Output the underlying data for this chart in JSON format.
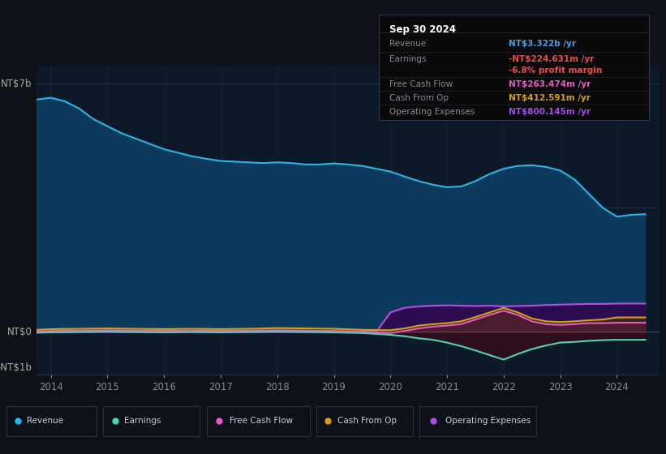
{
  "bg_color": "#0e1117",
  "plot_bg_color": "#0c1929",
  "title_box": {
    "date": "Sep 30 2024",
    "rows": [
      {
        "label": "Revenue",
        "value": "NT$3.322b /yr",
        "value_color": "#4f9de8"
      },
      {
        "label": "Earnings",
        "value": "-NT$224.631m /yr",
        "value_color": "#e84f4f"
      },
      {
        "label": "",
        "value": "-6.8% profit margin",
        "value_color": "#e84f4f"
      },
      {
        "label": "Free Cash Flow",
        "value": "NT$263.474m /yr",
        "value_color": "#e060c0"
      },
      {
        "label": "Cash From Op",
        "value": "NT$412.591m /yr",
        "value_color": "#d4a017"
      },
      {
        "label": "Operating Expenses",
        "value": "NT$800.145m /yr",
        "value_color": "#a04fe8"
      }
    ]
  },
  "ylabel_top": "NT$7b",
  "ylabel_zero": "NT$0",
  "ylabel_neg": "-NT$1b",
  "xticklabels": [
    "2014",
    "2015",
    "2016",
    "2017",
    "2018",
    "2019",
    "2020",
    "2021",
    "2022",
    "2023",
    "2024"
  ],
  "legend": [
    {
      "label": "Revenue",
      "color": "#29b5e8"
    },
    {
      "label": "Earnings",
      "color": "#4fd4b0"
    },
    {
      "label": "Free Cash Flow",
      "color": "#e060c0"
    },
    {
      "label": "Cash From Op",
      "color": "#d4a017"
    },
    {
      "label": "Operating Expenses",
      "color": "#a04fe8"
    }
  ],
  "series": {
    "revenue": {
      "line_color": "#29b5e8",
      "fill_color": "#0d3a5c",
      "data_x": [
        2013.75,
        2014.0,
        2014.25,
        2014.5,
        2014.75,
        2015.0,
        2015.25,
        2015.5,
        2015.75,
        2016.0,
        2016.25,
        2016.5,
        2016.75,
        2017.0,
        2017.25,
        2017.5,
        2017.75,
        2018.0,
        2018.25,
        2018.5,
        2018.75,
        2019.0,
        2019.25,
        2019.5,
        2019.75,
        2020.0,
        2020.25,
        2020.5,
        2020.75,
        2021.0,
        2021.25,
        2021.5,
        2021.75,
        2022.0,
        2022.25,
        2022.5,
        2022.75,
        2023.0,
        2023.25,
        2023.5,
        2023.75,
        2024.0,
        2024.25,
        2024.5
      ],
      "data_y": [
        6.55,
        6.6,
        6.5,
        6.3,
        6.0,
        5.8,
        5.6,
        5.45,
        5.3,
        5.15,
        5.05,
        4.95,
        4.88,
        4.82,
        4.8,
        4.78,
        4.76,
        4.78,
        4.76,
        4.72,
        4.72,
        4.75,
        4.72,
        4.68,
        4.6,
        4.52,
        4.38,
        4.25,
        4.15,
        4.08,
        4.1,
        4.25,
        4.45,
        4.6,
        4.68,
        4.7,
        4.65,
        4.55,
        4.3,
        3.9,
        3.5,
        3.25,
        3.3,
        3.32
      ]
    },
    "operating_expenses": {
      "line_color": "#b44fe0",
      "fill_color": "#3a1060",
      "data_x": [
        2013.75,
        2014.0,
        2015.0,
        2016.0,
        2017.0,
        2018.0,
        2019.0,
        2019.5,
        2019.75,
        2020.0,
        2020.25,
        2020.5,
        2020.75,
        2021.0,
        2021.25,
        2021.5,
        2021.75,
        2022.0,
        2022.25,
        2022.5,
        2022.75,
        2023.0,
        2023.25,
        2023.5,
        2023.75,
        2024.0,
        2024.25,
        2024.5
      ],
      "data_y": [
        0.0,
        0.0,
        0.0,
        0.0,
        0.0,
        0.0,
        0.0,
        0.0,
        0.0,
        0.55,
        0.68,
        0.72,
        0.74,
        0.75,
        0.74,
        0.73,
        0.74,
        0.72,
        0.73,
        0.74,
        0.76,
        0.77,
        0.78,
        0.79,
        0.79,
        0.8,
        0.8,
        0.8
      ]
    },
    "cash_from_op": {
      "line_color": "#d4a017",
      "data_x": [
        2013.75,
        2014.0,
        2014.5,
        2015.0,
        2015.5,
        2016.0,
        2016.5,
        2017.0,
        2017.5,
        2018.0,
        2018.5,
        2019.0,
        2019.5,
        2020.0,
        2020.25,
        2020.5,
        2020.75,
        2021.0,
        2021.25,
        2021.5,
        2021.75,
        2022.0,
        2022.25,
        2022.5,
        2022.75,
        2023.0,
        2023.25,
        2023.5,
        2023.75,
        2024.0,
        2024.25,
        2024.5
      ],
      "data_y": [
        0.06,
        0.08,
        0.09,
        0.1,
        0.09,
        0.08,
        0.09,
        0.08,
        0.09,
        0.11,
        0.1,
        0.09,
        0.06,
        0.05,
        0.1,
        0.18,
        0.22,
        0.25,
        0.3,
        0.42,
        0.55,
        0.68,
        0.55,
        0.38,
        0.3,
        0.28,
        0.3,
        0.33,
        0.35,
        0.41,
        0.41,
        0.41
      ]
    },
    "free_cash_flow": {
      "line_color": "#e060c0",
      "data_x": [
        2013.75,
        2014.0,
        2014.5,
        2015.0,
        2015.5,
        2016.0,
        2016.5,
        2017.0,
        2017.5,
        2018.0,
        2018.5,
        2019.0,
        2019.5,
        2020.0,
        2020.25,
        2020.5,
        2020.75,
        2021.0,
        2021.25,
        2021.5,
        2021.75,
        2022.0,
        2022.25,
        2022.5,
        2022.75,
        2023.0,
        2023.25,
        2023.5,
        2023.75,
        2024.0,
        2024.25,
        2024.5
      ],
      "data_y": [
        0.02,
        0.03,
        0.04,
        0.05,
        0.04,
        0.03,
        0.04,
        0.03,
        0.04,
        0.05,
        0.04,
        0.03,
        0.01,
        -0.03,
        0.03,
        0.1,
        0.15,
        0.18,
        0.22,
        0.35,
        0.48,
        0.6,
        0.48,
        0.3,
        0.22,
        0.2,
        0.22,
        0.25,
        0.25,
        0.26,
        0.26,
        0.26
      ]
    },
    "earnings": {
      "line_color": "#4fd4b0",
      "data_x": [
        2013.75,
        2014.0,
        2014.5,
        2015.0,
        2015.5,
        2016.0,
        2016.5,
        2017.0,
        2017.5,
        2018.0,
        2018.5,
        2019.0,
        2019.5,
        2020.0,
        2020.25,
        2020.5,
        2020.75,
        2021.0,
        2021.25,
        2021.5,
        2021.75,
        2022.0,
        2022.25,
        2022.5,
        2022.75,
        2023.0,
        2023.25,
        2023.5,
        2023.75,
        2024.0,
        2024.25,
        2024.5
      ],
      "data_y": [
        -0.02,
        -0.01,
        0.0,
        0.01,
        0.0,
        -0.01,
        0.0,
        -0.01,
        0.0,
        0.01,
        0.0,
        -0.01,
        -0.03,
        -0.08,
        -0.12,
        -0.18,
        -0.22,
        -0.3,
        -0.4,
        -0.52,
        -0.65,
        -0.78,
        -0.62,
        -0.48,
        -0.38,
        -0.3,
        -0.28,
        -0.25,
        -0.23,
        -0.22,
        -0.22,
        -0.22
      ]
    }
  }
}
